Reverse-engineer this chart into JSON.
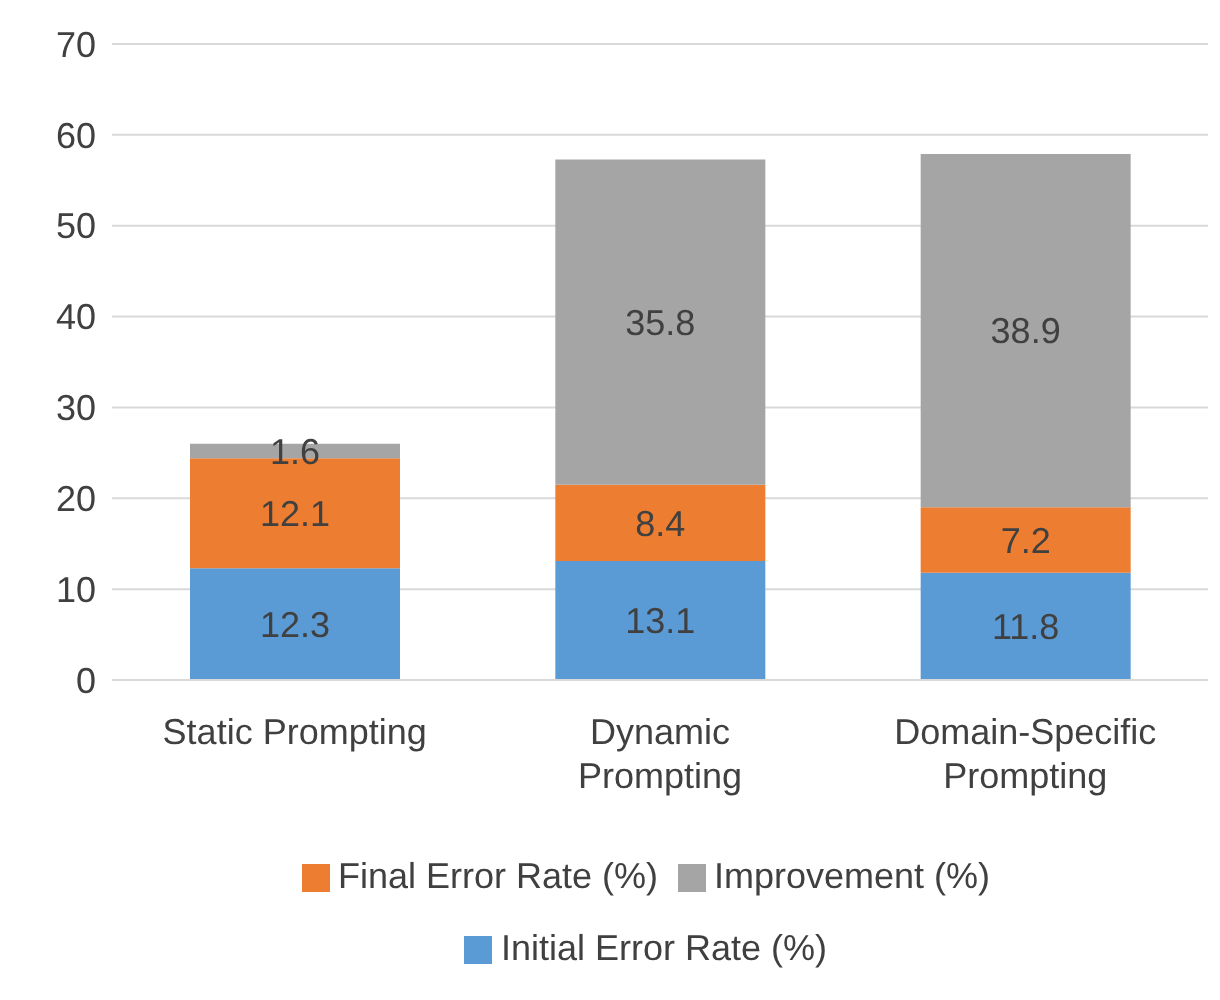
{
  "chart_data": {
    "type": "bar",
    "stacked": true,
    "categories": [
      "Static Prompting",
      "Dynamic Prompting",
      "Domain-Specific Prompting"
    ],
    "series": [
      {
        "name": "Initial Error Rate (%)",
        "color": "#5b9bd5",
        "values": [
          12.3,
          13.1,
          11.8
        ]
      },
      {
        "name": "Final Error Rate (%)",
        "color": "#ed7d31",
        "values": [
          12.1,
          8.4,
          7.2
        ]
      },
      {
        "name": "Improvement (%)",
        "color": "#a5a5a5",
        "values": [
          1.6,
          35.8,
          38.9
        ]
      }
    ],
    "ylim": [
      0,
      70
    ],
    "yticks": [
      0,
      10,
      20,
      30,
      40,
      50,
      60,
      70
    ],
    "grid": "y",
    "legend": "bottom",
    "data_labels": true
  }
}
